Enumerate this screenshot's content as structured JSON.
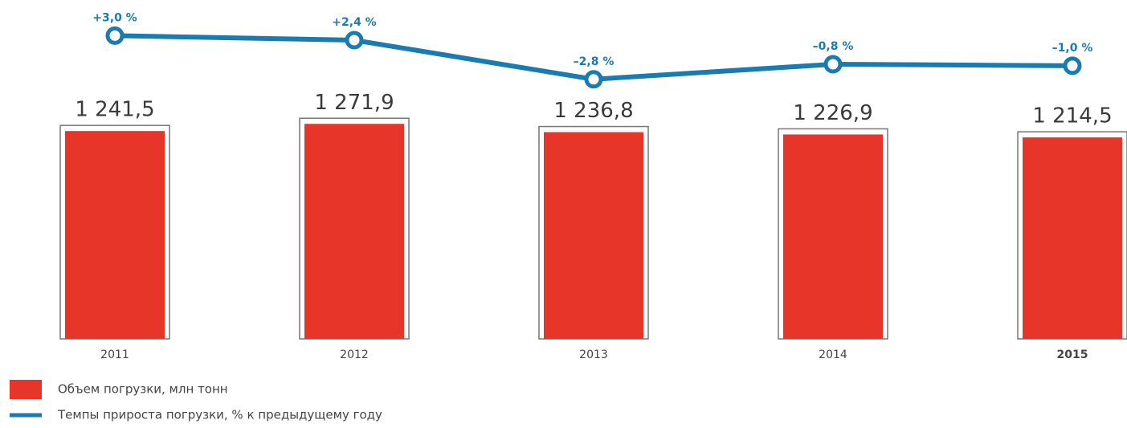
{
  "chart_data": {
    "type": "bar",
    "categories": [
      "2011",
      "2012",
      "2013",
      "2014",
      "2015"
    ],
    "ylim": [
      360,
      1300
    ],
    "y2lim": [
      -4,
      4
    ],
    "series": [
      {
        "name": "Объем погрузки, млн тонн",
        "type": "bar",
        "color": "#e8352a",
        "values": [
          1241.5,
          1271.9,
          1236.8,
          1226.9,
          1214.5
        ],
        "value_labels": [
          "1 241,5",
          "1 271,9",
          "1 236,8",
          "1 226,9",
          "1 214,5"
        ]
      },
      {
        "name": "Темпы прироста погрузки, % к предыдущему году",
        "type": "line",
        "axis": "y2",
        "color": "#1a7bb0",
        "values": [
          3.0,
          2.4,
          -2.8,
          -0.8,
          -1.0
        ],
        "value_labels": [
          "+3,0 %",
          "+2,4 %",
          "–2,8 %",
          "–0,8 %",
          "–1,0 %"
        ]
      }
    ]
  }
}
